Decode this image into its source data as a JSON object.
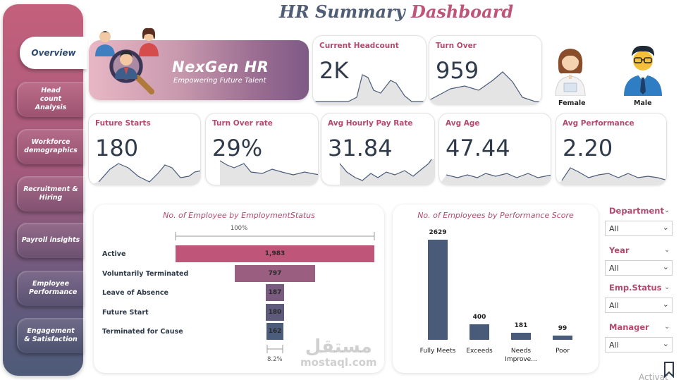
{
  "title": {
    "part1": "HR Summary",
    "part2": "Dashboard"
  },
  "sidebar": {
    "items": [
      {
        "label": "Overview"
      },
      {
        "label": "Head count Analysis"
      },
      {
        "label": "Workforce demographics"
      },
      {
        "label": "Recruitment & Hiring"
      },
      {
        "label": "Payroll insights"
      },
      {
        "label": "Employee Performance"
      },
      {
        "label": "Engagement & Satisfaction"
      }
    ]
  },
  "brand": {
    "name": "NexGen HR",
    "tagline": "Empowering Future Talent",
    "icon": "team-magnifier-icon"
  },
  "kpis": {
    "headcount": {
      "label": "Current Headcount",
      "value": "2K"
    },
    "turnover": {
      "label": "Turn Over",
      "value": "959"
    },
    "future_starts": {
      "label": "Future Starts",
      "value": "180"
    },
    "turnover_rate": {
      "label": "Turn Over rate",
      "value": "29%"
    },
    "avg_pay": {
      "label": "Avg Hourly Pay Rate",
      "value": "31.84"
    },
    "avg_age": {
      "label": "Avg Age",
      "value": "47.44"
    },
    "avg_perf": {
      "label": "Avg Performance",
      "value": "2.20"
    }
  },
  "gender": {
    "female": "Female",
    "male": "Male"
  },
  "colors": {
    "accent": "#b3496e",
    "navy": "#4a5b7a",
    "title_navy": "#4f5d75",
    "title_pink": "#c0557a"
  },
  "chart_data": [
    {
      "type": "bar",
      "orientation": "funnel",
      "title": "No. of Employee by EmploymentStatus",
      "categories": [
        "Active",
        "Voluntarily Terminated",
        "Leave of Absence",
        "Future Start",
        "Terminated for Cause"
      ],
      "values": [
        1983,
        797,
        187,
        180,
        162
      ],
      "value_labels": [
        "1,983",
        "797",
        "187",
        "180",
        "162"
      ],
      "top_pct_label": "100%",
      "bottom_pct_label": "8.2%",
      "colors": [
        "#c0557a",
        "#9a5e80",
        "#7a5b80",
        "#5e5a7c",
        "#4c5d7c"
      ]
    },
    {
      "type": "bar",
      "title": "No. of Employees by Performance Score",
      "categories": [
        "Fully Meets",
        "Exceeds",
        "Needs Improve...",
        "Poor"
      ],
      "values": [
        2629,
        400,
        181,
        99
      ],
      "value_labels": [
        "2629",
        "400",
        "181",
        "99"
      ]
    }
  ],
  "slicers": [
    {
      "label": "Department",
      "value": "All"
    },
    {
      "label": "Year",
      "value": "All"
    },
    {
      "label": "Emp.Status",
      "value": "All"
    },
    {
      "label": "Manager",
      "value": "All"
    }
  ],
  "watermark": {
    "arabic": "مستقل",
    "latin": "mostaql.com"
  },
  "activate_text": "Activat"
}
